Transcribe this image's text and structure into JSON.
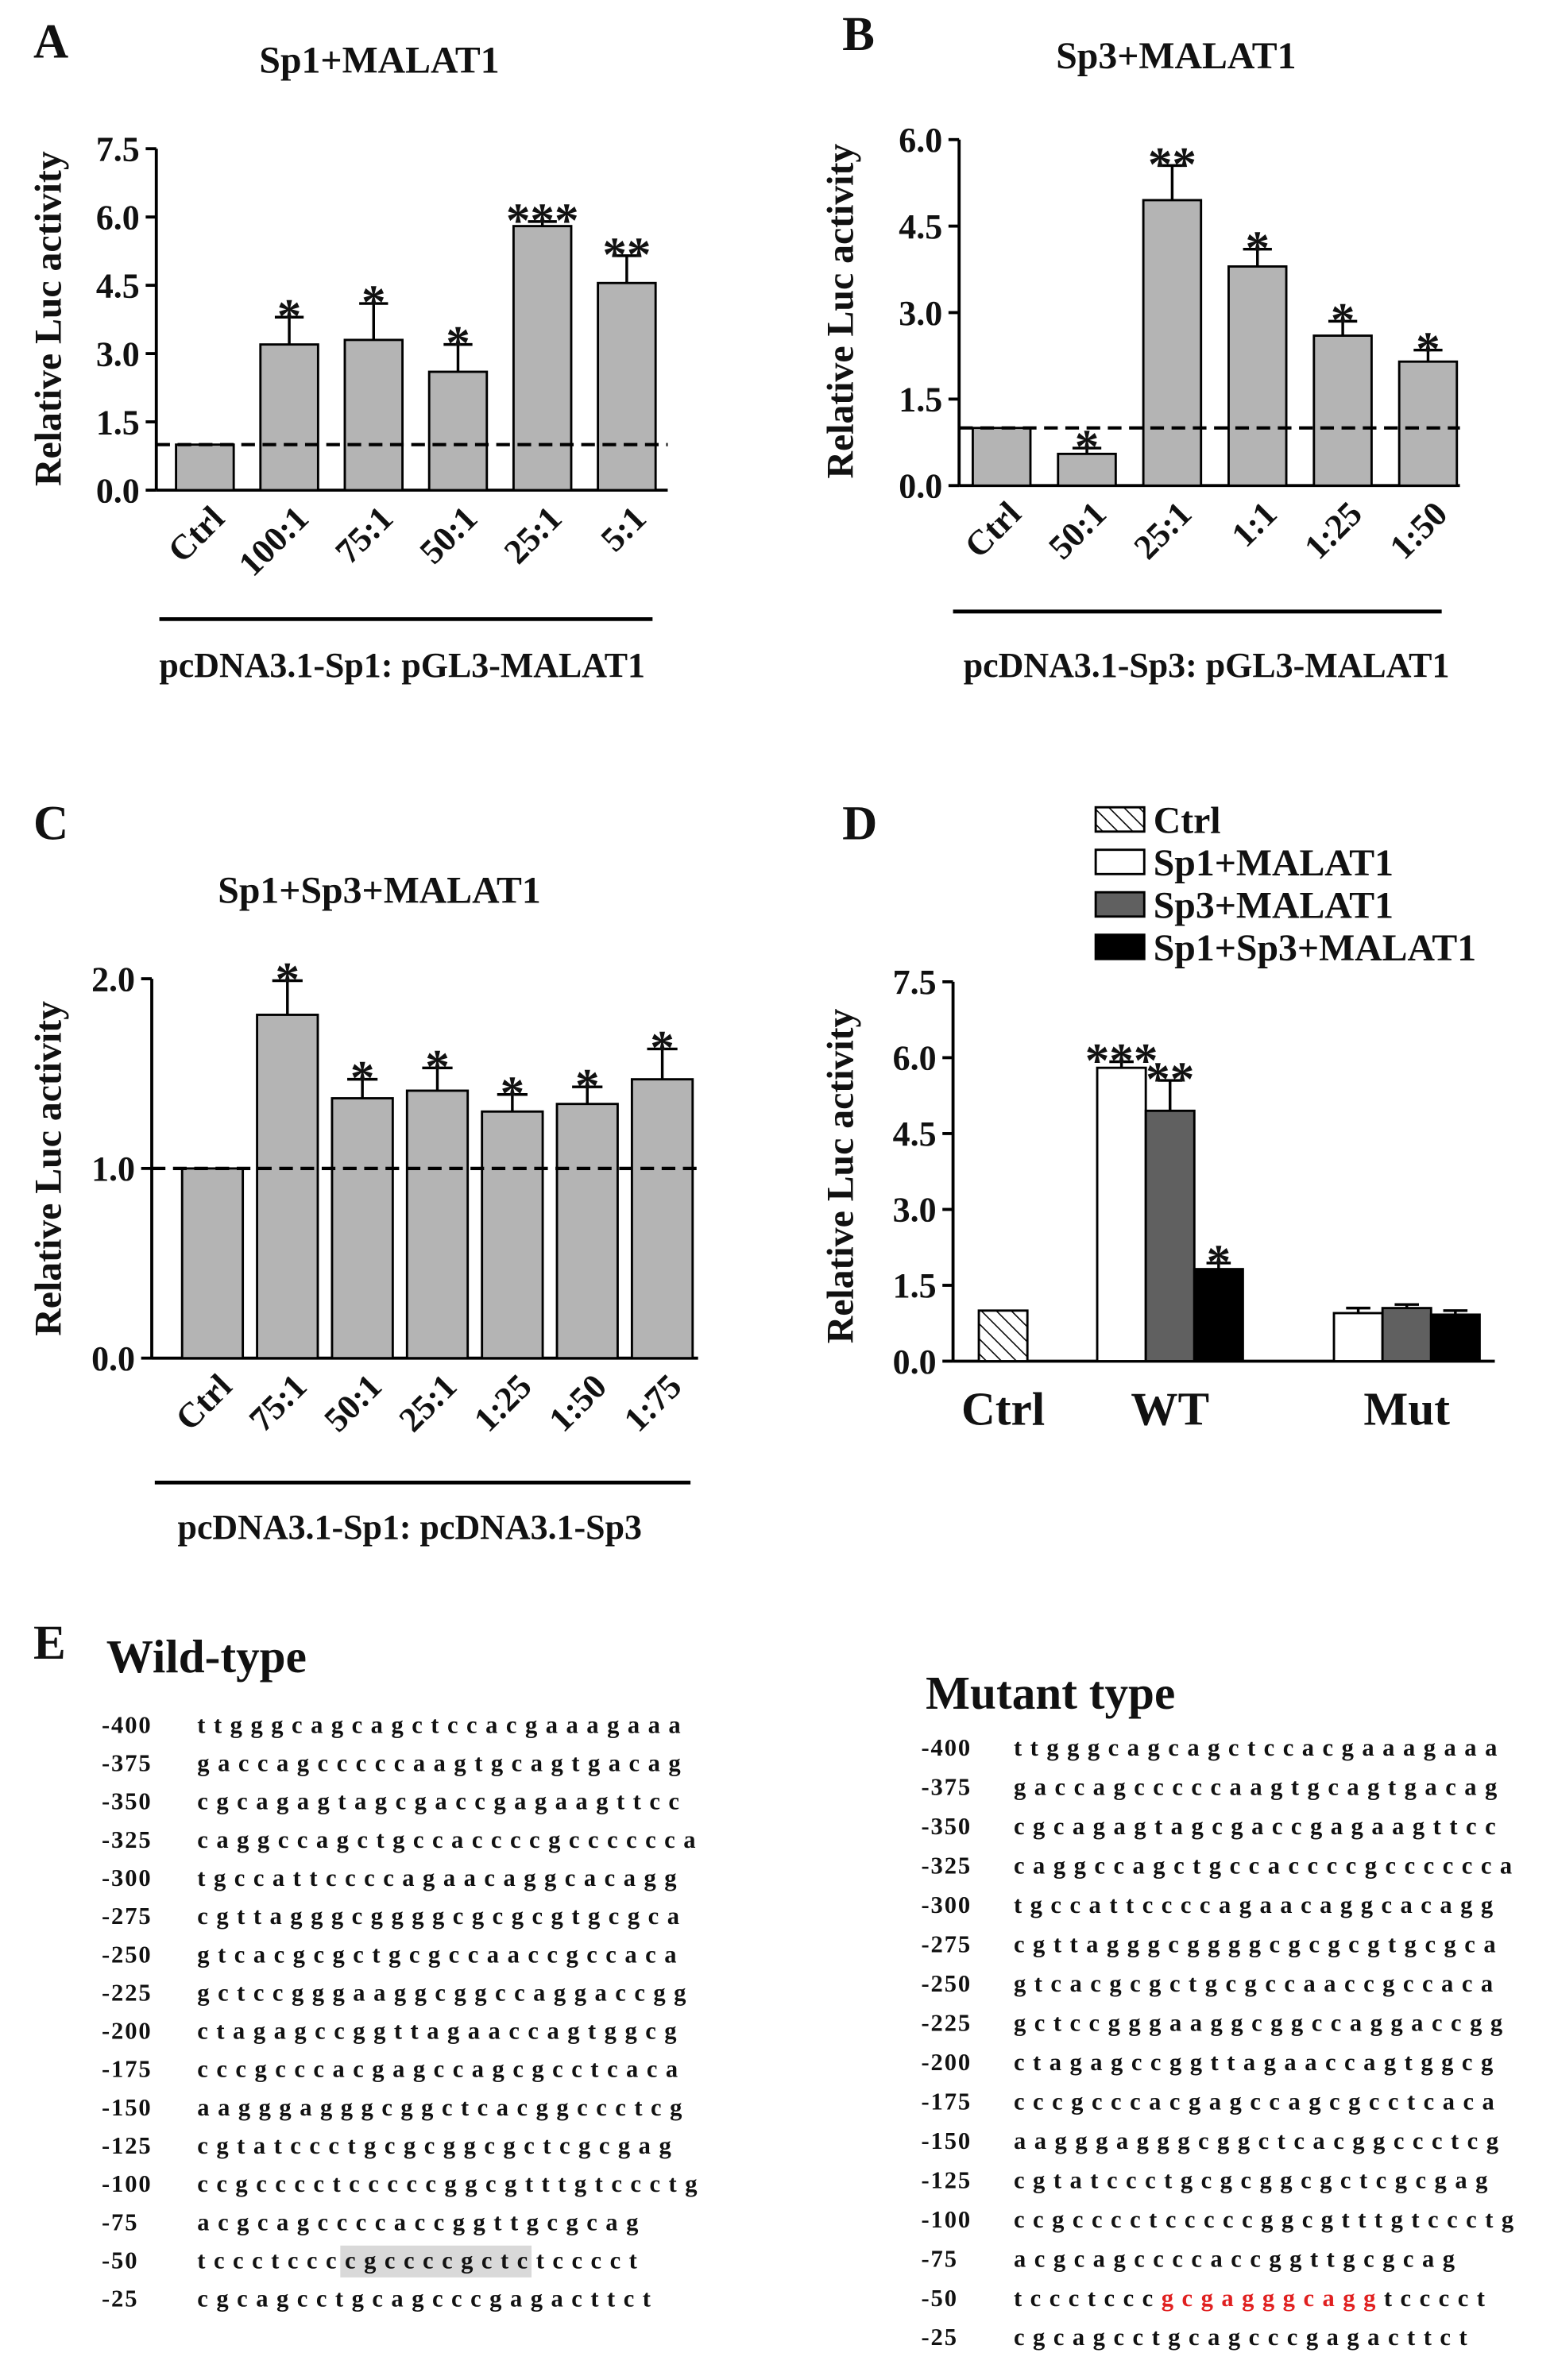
{
  "chart_data": [
    {
      "type": "bar",
      "panel_label": "A",
      "title": "Sp1+MALAT1",
      "y_label": "Relative Luc activity",
      "x_label": "pcDNA3.1-Sp1: pGL3-MALAT1",
      "categories": [
        "Ctrl",
        "100:1",
        "75:1",
        "50:1",
        "25:1",
        "5:1"
      ],
      "values": [
        1,
        3.2,
        3.3,
        2.6,
        5.8,
        4.55
      ],
      "errors": [
        null,
        0.6,
        0.8,
        0.6,
        0.1,
        0.6
      ],
      "annotations": [
        null,
        "*",
        "*",
        "*",
        "***",
        "**"
      ],
      "color": "#b4b4b4",
      "reference_line": 1,
      "ylim": [
        0,
        7.5
      ],
      "yticks": [
        {
          "value": 0,
          "label": "0.0"
        },
        {
          "value": 1.5,
          "label": "1.5"
        },
        {
          "value": 3,
          "label": "3.0"
        },
        {
          "value": 4.5,
          "label": "4.5"
        },
        {
          "value": 6,
          "label": "6.0"
        },
        {
          "value": 7.5,
          "label": "7.5"
        }
      ]
    },
    {
      "type": "bar",
      "panel_label": "B",
      "title": "Sp3+MALAT1",
      "y_label": "Relative Luc activity",
      "x_label": "pcDNA3.1-Sp3: pGL3-MALAT1",
      "categories": [
        "Ctrl",
        "50:1",
        "25:1",
        "1:1",
        "1:25",
        "1:50"
      ],
      "values": [
        1,
        0.55,
        4.95,
        3.8,
        2.6,
        2.15
      ],
      "errors": [
        null,
        0.1,
        0.6,
        0.3,
        0.25,
        0.2
      ],
      "annotations": [
        null,
        "*",
        "**",
        "*",
        "*",
        "*"
      ],
      "color": "#b4b4b4",
      "reference_line": 1,
      "ylim": [
        0,
        6
      ],
      "yticks": [
        {
          "value": 0,
          "label": "0.0"
        },
        {
          "value": 1.5,
          "label": "1.5"
        },
        {
          "value": 3,
          "label": "3.0"
        },
        {
          "value": 4.5,
          "label": "4.5"
        },
        {
          "value": 6,
          "label": "6.0"
        }
      ]
    },
    {
      "type": "bar",
      "panel_label": "C",
      "title": "Sp1+Sp3+MALAT1",
      "y_label": "Relative Luc activity",
      "x_label": "pcDNA3.1-Sp1: pcDNA3.1-Sp3",
      "categories": [
        "Ctrl",
        "75:1",
        "50:1",
        "25:1",
        "1:25",
        "1:50",
        "1:75"
      ],
      "values": [
        1,
        1.81,
        1.37,
        1.41,
        1.3,
        1.34,
        1.47
      ],
      "errors": [
        null,
        0.18,
        0.1,
        0.12,
        0.09,
        0.09,
        0.16
      ],
      "annotations": [
        null,
        "*",
        "*",
        "*",
        "*",
        "*",
        "*"
      ],
      "color": "#b4b4b4",
      "reference_line": 1,
      "ylim": [
        0,
        2
      ],
      "yticks": [
        {
          "value": 0,
          "label": "0.0"
        },
        {
          "value": 1,
          "label": "1.0"
        },
        {
          "value": 2,
          "label": "2.0"
        }
      ]
    },
    {
      "type": "grouped_bar",
      "panel_label": "D",
      "y_label": "Relative Luc activity",
      "categories": [
        "Ctrl",
        "WT",
        "Mut"
      ],
      "series": [
        {
          "name": "Ctrl",
          "color": "#ffffff",
          "pattern": "hatch",
          "values": [
            1,
            null,
            null
          ],
          "errors": [
            null,
            null,
            null
          ]
        },
        {
          "name": "Sp1+MALAT1",
          "color": "#ffffff",
          "values": [
            null,
            5.8,
            0.95
          ],
          "errors": [
            null,
            0.12,
            0.1
          ],
          "annotations": [
            null,
            "***",
            null
          ]
        },
        {
          "name": "Sp3+MALAT1",
          "color": "#606060",
          "values": [
            null,
            4.95,
            1.05
          ],
          "errors": [
            null,
            0.6,
            0.07
          ],
          "annotations": [
            null,
            "**",
            null
          ]
        },
        {
          "name": "Sp1+Sp3+MALAT1",
          "color": "#000000",
          "values": [
            null,
            1.82,
            0.92
          ],
          "errors": [
            null,
            0.12,
            0.08
          ],
          "annotations": [
            null,
            "*",
            null
          ]
        }
      ],
      "ylim": [
        0,
        7.5
      ],
      "yticks": [
        {
          "value": 0,
          "label": "0.0"
        },
        {
          "value": 1.5,
          "label": "1.5"
        },
        {
          "value": 3,
          "label": "3.0"
        },
        {
          "value": 4.5,
          "label": "4.5"
        },
        {
          "value": 6,
          "label": "6.0"
        },
        {
          "value": 7.5,
          "label": "7.5"
        }
      ]
    }
  ],
  "panel_e": {
    "label": "E",
    "wild_type": {
      "title": "Wild-type",
      "highlight": {
        "style": "background",
        "color": "#d9d9d9"
      },
      "rows": [
        {
          "position": "-400",
          "sequence": "ttgggcagcagctccacgaaagaaa"
        },
        {
          "position": "-375",
          "sequence": "gaccagcccccaagtgcagtgacag"
        },
        {
          "position": "-350",
          "sequence": "cgcagagtagcgaccgagaagttcc"
        },
        {
          "position": "-325",
          "sequence": "caggccagctgccaccccgcccccca"
        },
        {
          "position": "-300",
          "sequence": "tgccattccccagaacaggcacagg"
        },
        {
          "position": "-275",
          "sequence": "cgttagggcggggcgcgcgtgcgca"
        },
        {
          "position": "-250",
          "sequence": "gtcacgcgctgcgccaaccgccaca"
        },
        {
          "position": "-225",
          "sequence": "gctccgggaaggcggccaggaccgg"
        },
        {
          "position": "-200",
          "sequence": "ctagagccggttagaaccagtggcg"
        },
        {
          "position": "-175",
          "sequence": "cccgcccacgagccagcgcctcaca"
        },
        {
          "position": "-150",
          "sequence": "aagggagggcggctcacggccctcg"
        },
        {
          "position": "-125",
          "sequence": "cgtatccctgcgcggcgctcgcgag"
        },
        {
          "position": "-100",
          "sequence": "ccgcccctcccccggcgtttgtccctg"
        },
        {
          "position": "-75",
          "sequence": "acgcagccccaccggttgcgcag"
        },
        {
          "position": "-50",
          "sequence": [
            "tccctccc",
            "cgccccgctc",
            "tcccct"
          ]
        },
        {
          "position": "-25",
          "sequence": "cgcagcctgcagcccgagacttct"
        }
      ]
    },
    "mutant_type": {
      "title": "Mutant type",
      "highlight": {
        "style": "text",
        "color": "#e02020"
      },
      "rows": [
        {
          "position": "-400",
          "sequence": "ttgggcagcagctccacgaaagaaa"
        },
        {
          "position": "-375",
          "sequence": "gaccagcccccaagtgcagtgacag"
        },
        {
          "position": "-350",
          "sequence": "cgcagagtagcgaccgagaagttcc"
        },
        {
          "position": "-325",
          "sequence": "caggccagctgccaccccgcccccca"
        },
        {
          "position": "-300",
          "sequence": "tgccattccccagaacaggcacagg"
        },
        {
          "position": "-275",
          "sequence": "cgttagggcggggcgcgcgtgcgca"
        },
        {
          "position": "-250",
          "sequence": "gtcacgcgctgcgccaaccgccaca"
        },
        {
          "position": "-225",
          "sequence": "gctccgggaaggcggccaggaccgg"
        },
        {
          "position": "-200",
          "sequence": "ctagagccggttagaaccagtggcg"
        },
        {
          "position": "-175",
          "sequence": "cccgcccacgagccagcgcctcaca"
        },
        {
          "position": "-150",
          "sequence": "aagggagggcggctcacggccctcg"
        },
        {
          "position": "-125",
          "sequence": "cgtatccctgcgcggcgctcgcgag"
        },
        {
          "position": "-100",
          "sequence": "ccgcccctcccccggcgtttgtccctg"
        },
        {
          "position": "-75",
          "sequence": "acgcagccccaccggttgcgcag"
        },
        {
          "position": "-50",
          "sequence": [
            "tccctccc",
            "gcgagggcagg",
            "tcccct"
          ]
        },
        {
          "position": "-25",
          "sequence": "cgcagcctgcagcccgagacttct"
        }
      ]
    }
  }
}
